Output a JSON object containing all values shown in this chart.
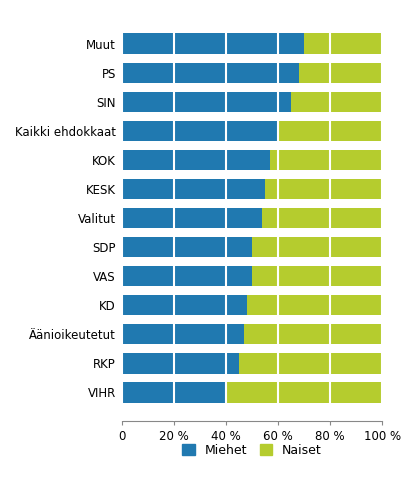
{
  "categories": [
    "Muut",
    "PS",
    "SIN",
    "Kaikki ehdokkaat",
    "KOK",
    "KESK",
    "Valitut",
    "SDP",
    "VAS",
    "KD",
    "Äänioikeutetut",
    "RKP",
    "VIHR"
  ],
  "miehet": [
    70,
    68,
    65,
    60,
    57,
    55,
    54,
    50,
    50,
    48,
    47,
    45,
    40
  ],
  "naiset": [
    30,
    32,
    35,
    40,
    43,
    45,
    46,
    50,
    50,
    52,
    53,
    55,
    60
  ],
  "color_miehet": "#2079b0",
  "color_naiset": "#b5cc2e",
  "xlabel_ticks": [
    "0",
    "20 %",
    "40 %",
    "60 %",
    "80 %",
    "100 %"
  ],
  "xtick_values": [
    0,
    20,
    40,
    60,
    80,
    100
  ],
  "legend_miehet": "Miehet",
  "legend_naiset": "Naiset",
  "bar_height": 0.7,
  "grid_color": "#ffffff",
  "background_color": "#ffffff"
}
